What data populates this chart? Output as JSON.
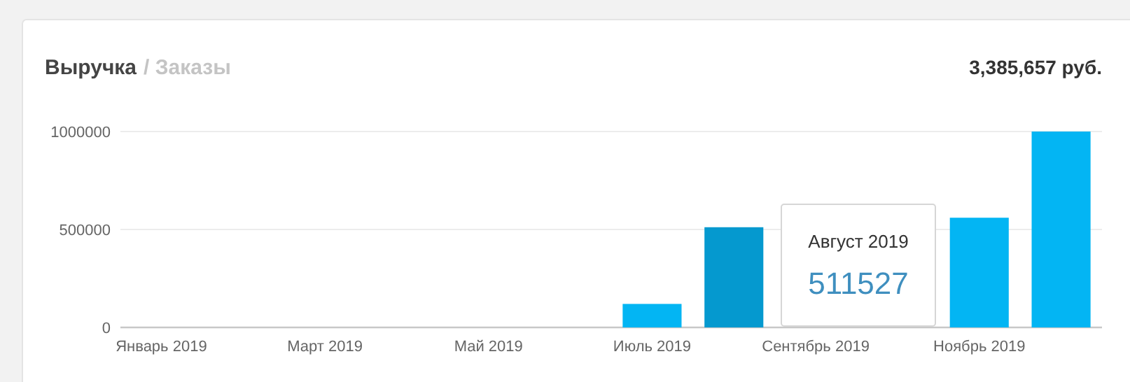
{
  "chart_data": {
    "type": "bar",
    "title": "Выручка",
    "subtitle": "/ Заказы",
    "annotations": [
      "3,385,657 руб.",
      "Август 2019",
      "511527"
    ],
    "categories": [
      "Январь 2019",
      null,
      "Март 2019",
      null,
      "Май 2019",
      null,
      "Июль 2019",
      null,
      "Сентябрь 2019",
      null,
      "Ноябрь 2019",
      null
    ],
    "values": [
      0,
      0,
      0,
      0,
      0,
      0,
      120000,
      511527,
      null,
      null,
      560000,
      1000000
    ],
    "colors": [
      "#03b5f3",
      "#03b5f3",
      "#03b5f3",
      "#03b5f3",
      "#03b5f3",
      "#03b5f3",
      "#03b5f3",
      "#0599cf",
      null,
      null,
      "#03b5f3",
      "#03b5f3"
    ],
    "ylim": [
      0,
      1000000
    ],
    "yticks": [
      0,
      500000,
      1000000
    ],
    "grid": "y"
  }
}
